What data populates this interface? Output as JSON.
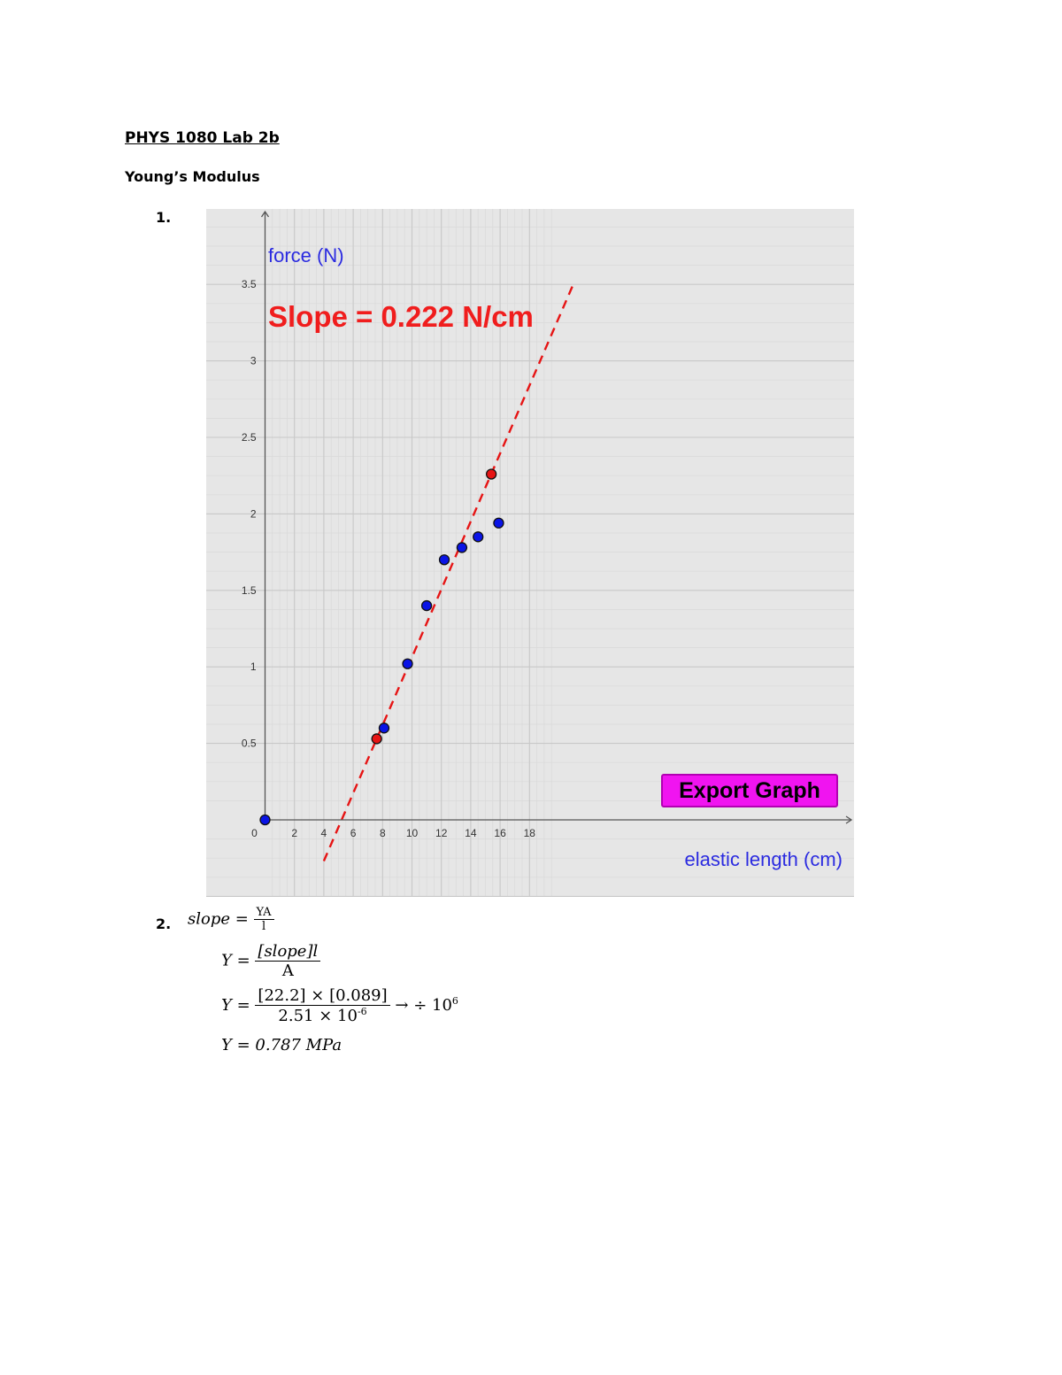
{
  "document": {
    "title": "PHYS 1080 Lab 2b",
    "subtitle": "Young’s Modulus",
    "item1_number": "1.",
    "item2_number": "2."
  },
  "graph": {
    "ylabel": "force (N)",
    "xlabel": "elastic length (cm)",
    "annotation": "Slope = 0.222 N/cm",
    "export_button_label": "Export Graph",
    "colors": {
      "background": "#e6e6e6",
      "grid_major": "#c8c8c8",
      "grid_minor": "#d9d9d9",
      "axis": "#555555",
      "blue_points": "#0a14e6",
      "red_points": "#e61414",
      "fit_line": "#e61414",
      "axis_titles": "#2b2be0",
      "button": "#f014f0"
    }
  },
  "chart_data": {
    "type": "scatter",
    "title": "",
    "xlabel": "elastic length (cm)",
    "ylabel": "force (N)",
    "xlim": [
      -0.4,
      20
    ],
    "ylim": [
      -0.5,
      4
    ],
    "x_ticks": [
      "0",
      "2",
      "4",
      "6",
      "8",
      "10",
      "12",
      "14",
      "16",
      "18"
    ],
    "y_ticks": [
      "0.5",
      "1",
      "1.5",
      "2",
      "2.5",
      "3",
      "3.5"
    ],
    "grid": true,
    "series": [
      {
        "color": "#0a14e6",
        "points": [
          [
            0,
            0
          ],
          [
            8.1,
            0.6
          ],
          [
            9.7,
            1.02
          ],
          [
            11.0,
            1.4
          ],
          [
            12.2,
            1.7
          ],
          [
            13.4,
            1.78
          ],
          [
            14.5,
            1.85
          ],
          [
            15.9,
            1.94
          ]
        ]
      },
      {
        "color": "#e61414",
        "points": [
          [
            7.6,
            0.53
          ],
          [
            15.4,
            2.26
          ]
        ]
      }
    ],
    "fit_line": {
      "slope": 0.222,
      "point": [
        7.6,
        0.53
      ],
      "style": "dashed",
      "color": "#e61414"
    },
    "annotation": "Slope = 0.222 N/cm"
  },
  "equations": {
    "eq1_lhs": "slope =",
    "eq1_num": "YA",
    "eq1_den": "l",
    "eq2_lhs": "Y =",
    "eq2_num": "[slope]l",
    "eq2_den": "A",
    "eq3_lhs": "Y =",
    "eq3_num": "[22.2] × [0.089]",
    "eq3_den_base": "2.51 × 10",
    "eq3_den_exp": "-6",
    "eq3_rhs_base": "→ ÷ 10",
    "eq3_rhs_exp": "6",
    "eq4": "Y = 0.787 MPa"
  }
}
